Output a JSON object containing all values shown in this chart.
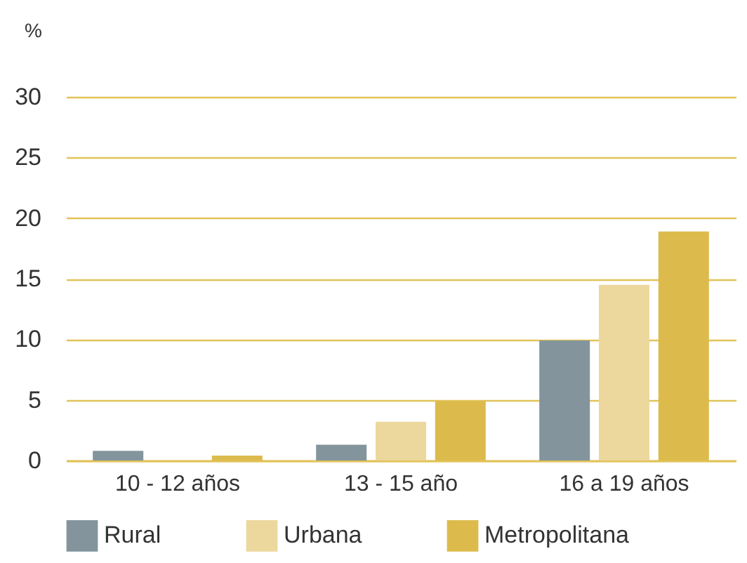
{
  "chart_data": {
    "type": "bar",
    "ylabel": "%",
    "categories": [
      "10 - 12 años",
      "13 - 15 año",
      "16 a 19 años"
    ],
    "series": [
      {
        "name": "Rural",
        "color": "#83949d",
        "values": [
          0.8,
          1.3,
          9.9
        ]
      },
      {
        "name": "Urbana",
        "color": "#ecd89d",
        "values": [
          0,
          3.2,
          14.5
        ]
      },
      {
        "name": "Metropolitana",
        "color": "#dcbb4c",
        "values": [
          0.4,
          4.9,
          18.9
        ]
      }
    ],
    "ylim": [
      0,
      30
    ],
    "yticks": [
      0,
      5,
      10,
      15,
      20,
      25,
      30
    ],
    "grid": "y",
    "legend": "bottom"
  }
}
